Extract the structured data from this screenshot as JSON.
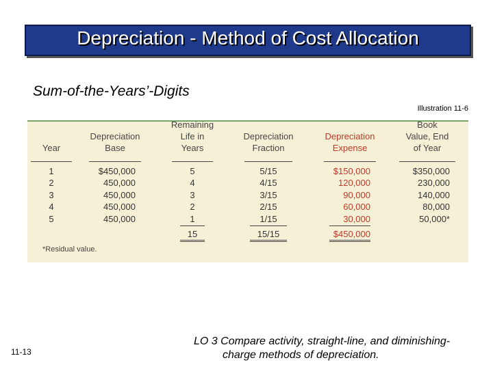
{
  "header": {
    "title": "Depreciation - Method of Cost Allocation"
  },
  "subtitle": "Sum-of-the-Years’-Digits",
  "illustration": "Illustration 11-6",
  "table": {
    "headers": [
      [
        "Year"
      ],
      [
        "Depreciation",
        "Base"
      ],
      [
        "Remaining",
        "Life in",
        "Years"
      ],
      [
        "Depreciation",
        "Fraction"
      ],
      [
        "Depreciation",
        "Expense"
      ],
      [
        "Book",
        "Value, End",
        "of Year"
      ]
    ],
    "rows": [
      [
        "1",
        "$450,000",
        "5",
        "5/15",
        "$150,000",
        "$350,000"
      ],
      [
        "2",
        "450,000",
        "4",
        "4/15",
        "120,000",
        "230,000"
      ],
      [
        "3",
        "450,000",
        "3",
        "3/15",
        "90,000",
        "140,000"
      ],
      [
        "4",
        "450,000",
        "2",
        "2/15",
        "60,000",
        "80,000"
      ],
      [
        "5",
        "450,000",
        "1",
        "1/15",
        "30,000",
        "50,000*"
      ]
    ],
    "totals": {
      "life": "15",
      "fraction": "15/15",
      "expense": "$450,000"
    },
    "footnote": "*Residual value."
  },
  "footer": {
    "page": "11-13",
    "objective": [
      "LO 3  Compare activity, straight-line, and diminishing-",
      "charge methods of depreciation."
    ]
  }
}
